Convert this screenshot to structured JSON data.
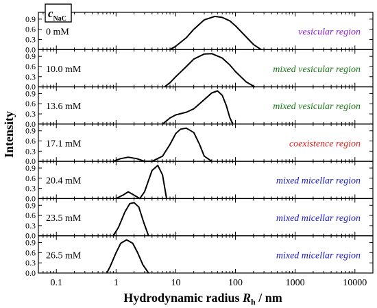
{
  "chart_data": {
    "type": "line",
    "title_box": {
      "letter": "c",
      "subscript": "NaC"
    },
    "xlabel": {
      "prefix": "Hydrodynamic radius ",
      "symbol": "R",
      "subscript": "h",
      "suffix": " / nm"
    },
    "ylabel": "Intensity",
    "xscale": "log",
    "xlim": [
      0.05,
      20000
    ],
    "xticks": [
      0.1,
      1,
      10,
      100,
      1000,
      10000
    ],
    "xtick_labels": [
      "0.1",
      "1",
      "10",
      "100",
      "1000",
      "10000"
    ],
    "ylim": [
      0,
      1.1
    ],
    "yticks": [
      0.0,
      0.3,
      0.6,
      0.9
    ],
    "ytick_labels": [
      "0.0",
      "0.3",
      "0.6",
      "0.9"
    ],
    "series": [
      {
        "name": "0 mM",
        "region": "vesicular region",
        "region_color": "#8e1fd6",
        "x": [
          8,
          10,
          15,
          20,
          30,
          45,
          60,
          80,
          100,
          150,
          200,
          270
        ],
        "y": [
          0.0,
          0.1,
          0.35,
          0.6,
          0.88,
          0.98,
          0.95,
          0.85,
          0.7,
          0.38,
          0.15,
          0.0
        ]
      },
      {
        "name": "10.0 mM",
        "region": "mixed vesicular region",
        "region_color": "#1a7a1a",
        "x": [
          6.5,
          8,
          10,
          15,
          20,
          30,
          40,
          60,
          80,
          100,
          150,
          210
        ],
        "y": [
          0.0,
          0.12,
          0.3,
          0.6,
          0.82,
          0.97,
          0.98,
          0.85,
          0.65,
          0.45,
          0.15,
          0.0
        ]
      },
      {
        "name": "13.6 mM",
        "region": "mixed vesicular region",
        "region_color": "#1a7a1a",
        "x": [
          6,
          8,
          10,
          15,
          20,
          30,
          40,
          50,
          60,
          70,
          80,
          90
        ],
        "y": [
          0.0,
          0.18,
          0.27,
          0.35,
          0.45,
          0.72,
          0.92,
          0.98,
          0.85,
          0.55,
          0.2,
          0.0
        ]
      },
      {
        "name": "17.1 mM",
        "region": "coexistence region",
        "region_color": "#e02020",
        "x": [
          0.9,
          1.2,
          1.6,
          2.2,
          3,
          4,
          6,
          8,
          10,
          12,
          15,
          20,
          25,
          30,
          40
        ],
        "y": [
          0.0,
          0.08,
          0.12,
          0.08,
          0.0,
          0.0,
          0.15,
          0.5,
          0.82,
          0.95,
          0.98,
          0.85,
          0.5,
          0.15,
          0.0
        ]
      },
      {
        "name": "20.4 mM",
        "region": "mixed micellar region",
        "region_color": "#1c1cc8",
        "x": [
          1.0,
          1.3,
          1.6,
          2.0,
          2.5,
          3.0,
          4.0,
          5.0,
          6.0,
          7.0
        ],
        "y": [
          0.0,
          0.1,
          0.2,
          0.1,
          0.0,
          0.2,
          0.83,
          0.98,
          0.7,
          0.0
        ]
      },
      {
        "name": "23.5 mM",
        "region": "mixed micellar region",
        "region_color": "#1c1cc8",
        "x": [
          0.9,
          1.1,
          1.4,
          1.7,
          2.0,
          2.4,
          2.9,
          3.5
        ],
        "y": [
          0.0,
          0.25,
          0.7,
          0.95,
          0.98,
          0.85,
          0.4,
          0.0
        ]
      },
      {
        "name": "26.5 mM",
        "region": "mixed micellar region",
        "region_color": "#1c1cc8",
        "x": [
          0.7,
          0.8,
          1.0,
          1.2,
          1.5,
          1.9,
          2.3,
          2.8,
          3.5
        ],
        "y": [
          0.0,
          0.2,
          0.6,
          0.88,
          0.98,
          0.88,
          0.6,
          0.25,
          0.0
        ]
      }
    ]
  }
}
